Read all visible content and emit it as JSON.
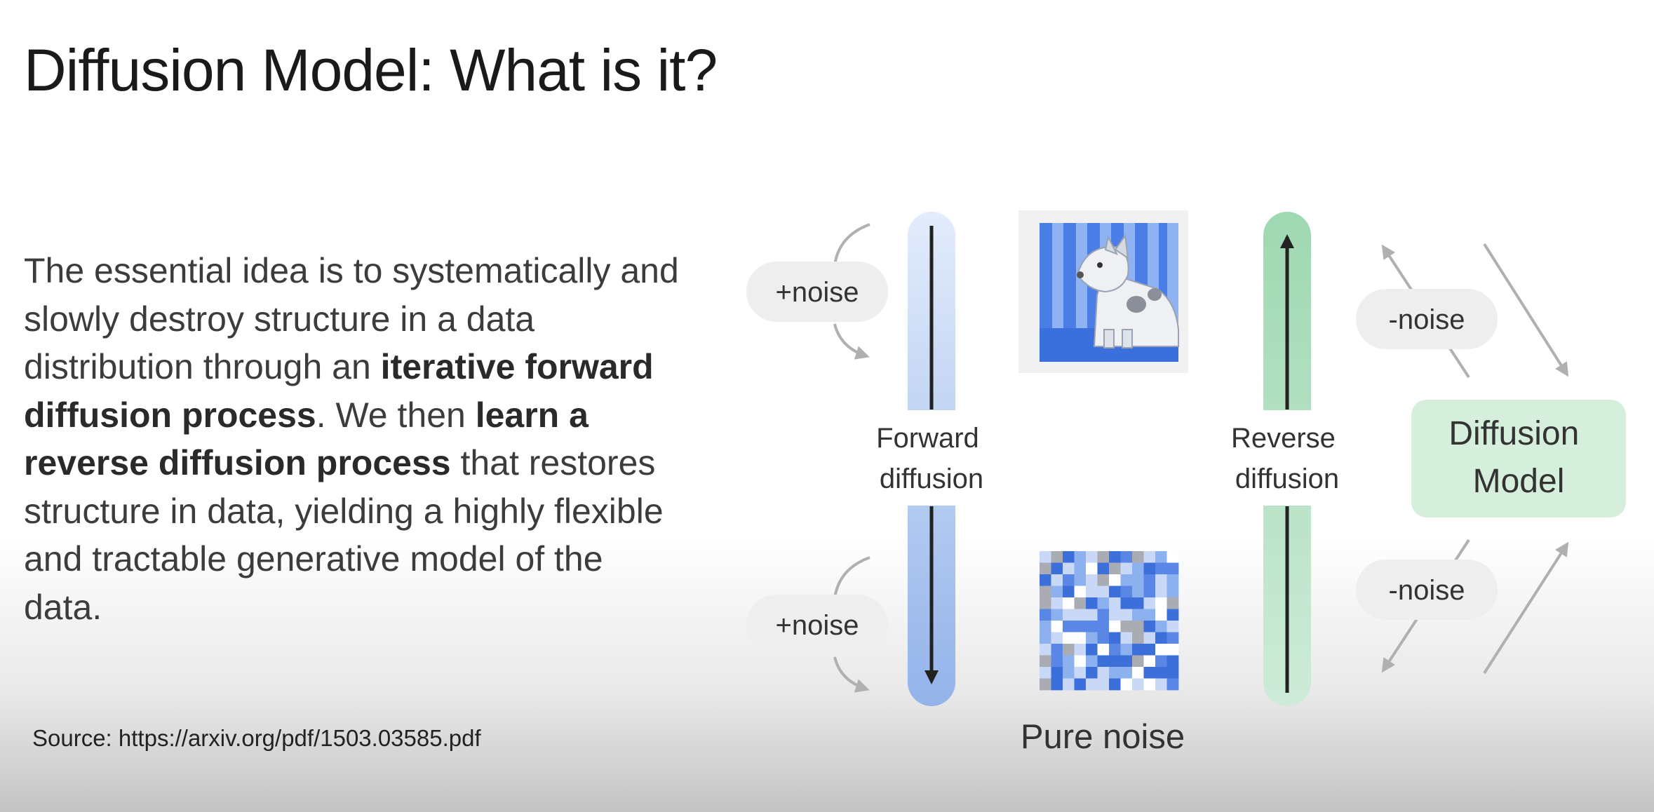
{
  "slide": {
    "title": "Diffusion Model: What is it?",
    "body": {
      "s1": "The essential idea is to systematically and slowly destroy structure in a data distribution through an ",
      "b1": "iterative forward diffusion process",
      "s2": ". We then ",
      "b2": "learn a reverse diffusion process",
      "s3": " that restores structure in data, yielding a highly flexible and tractable generative model of the data."
    },
    "source": "Source: https://arxiv.org/pdf/1503.03585.pdf"
  },
  "diagram": {
    "noise_add_label": "+noise",
    "noise_remove_label": "-noise",
    "forward_label": [
      "Forward",
      "diffusion"
    ],
    "reverse_label": [
      "Reverse",
      "diffusion"
    ],
    "model_label": [
      "Diffusion",
      "Model"
    ],
    "pure_noise_label": "Pure noise",
    "colors": {
      "forward_bar": "#b7cdf5",
      "reverse_bar": "#a6dcb8",
      "model_box": "#d5efdc",
      "pill": "#eeeeee",
      "image_blue": "#4a7ee6",
      "arrow_gray": "#b0b0b0"
    },
    "icons": [
      "dog-illustration-icon",
      "noise-grid-icon"
    ]
  }
}
